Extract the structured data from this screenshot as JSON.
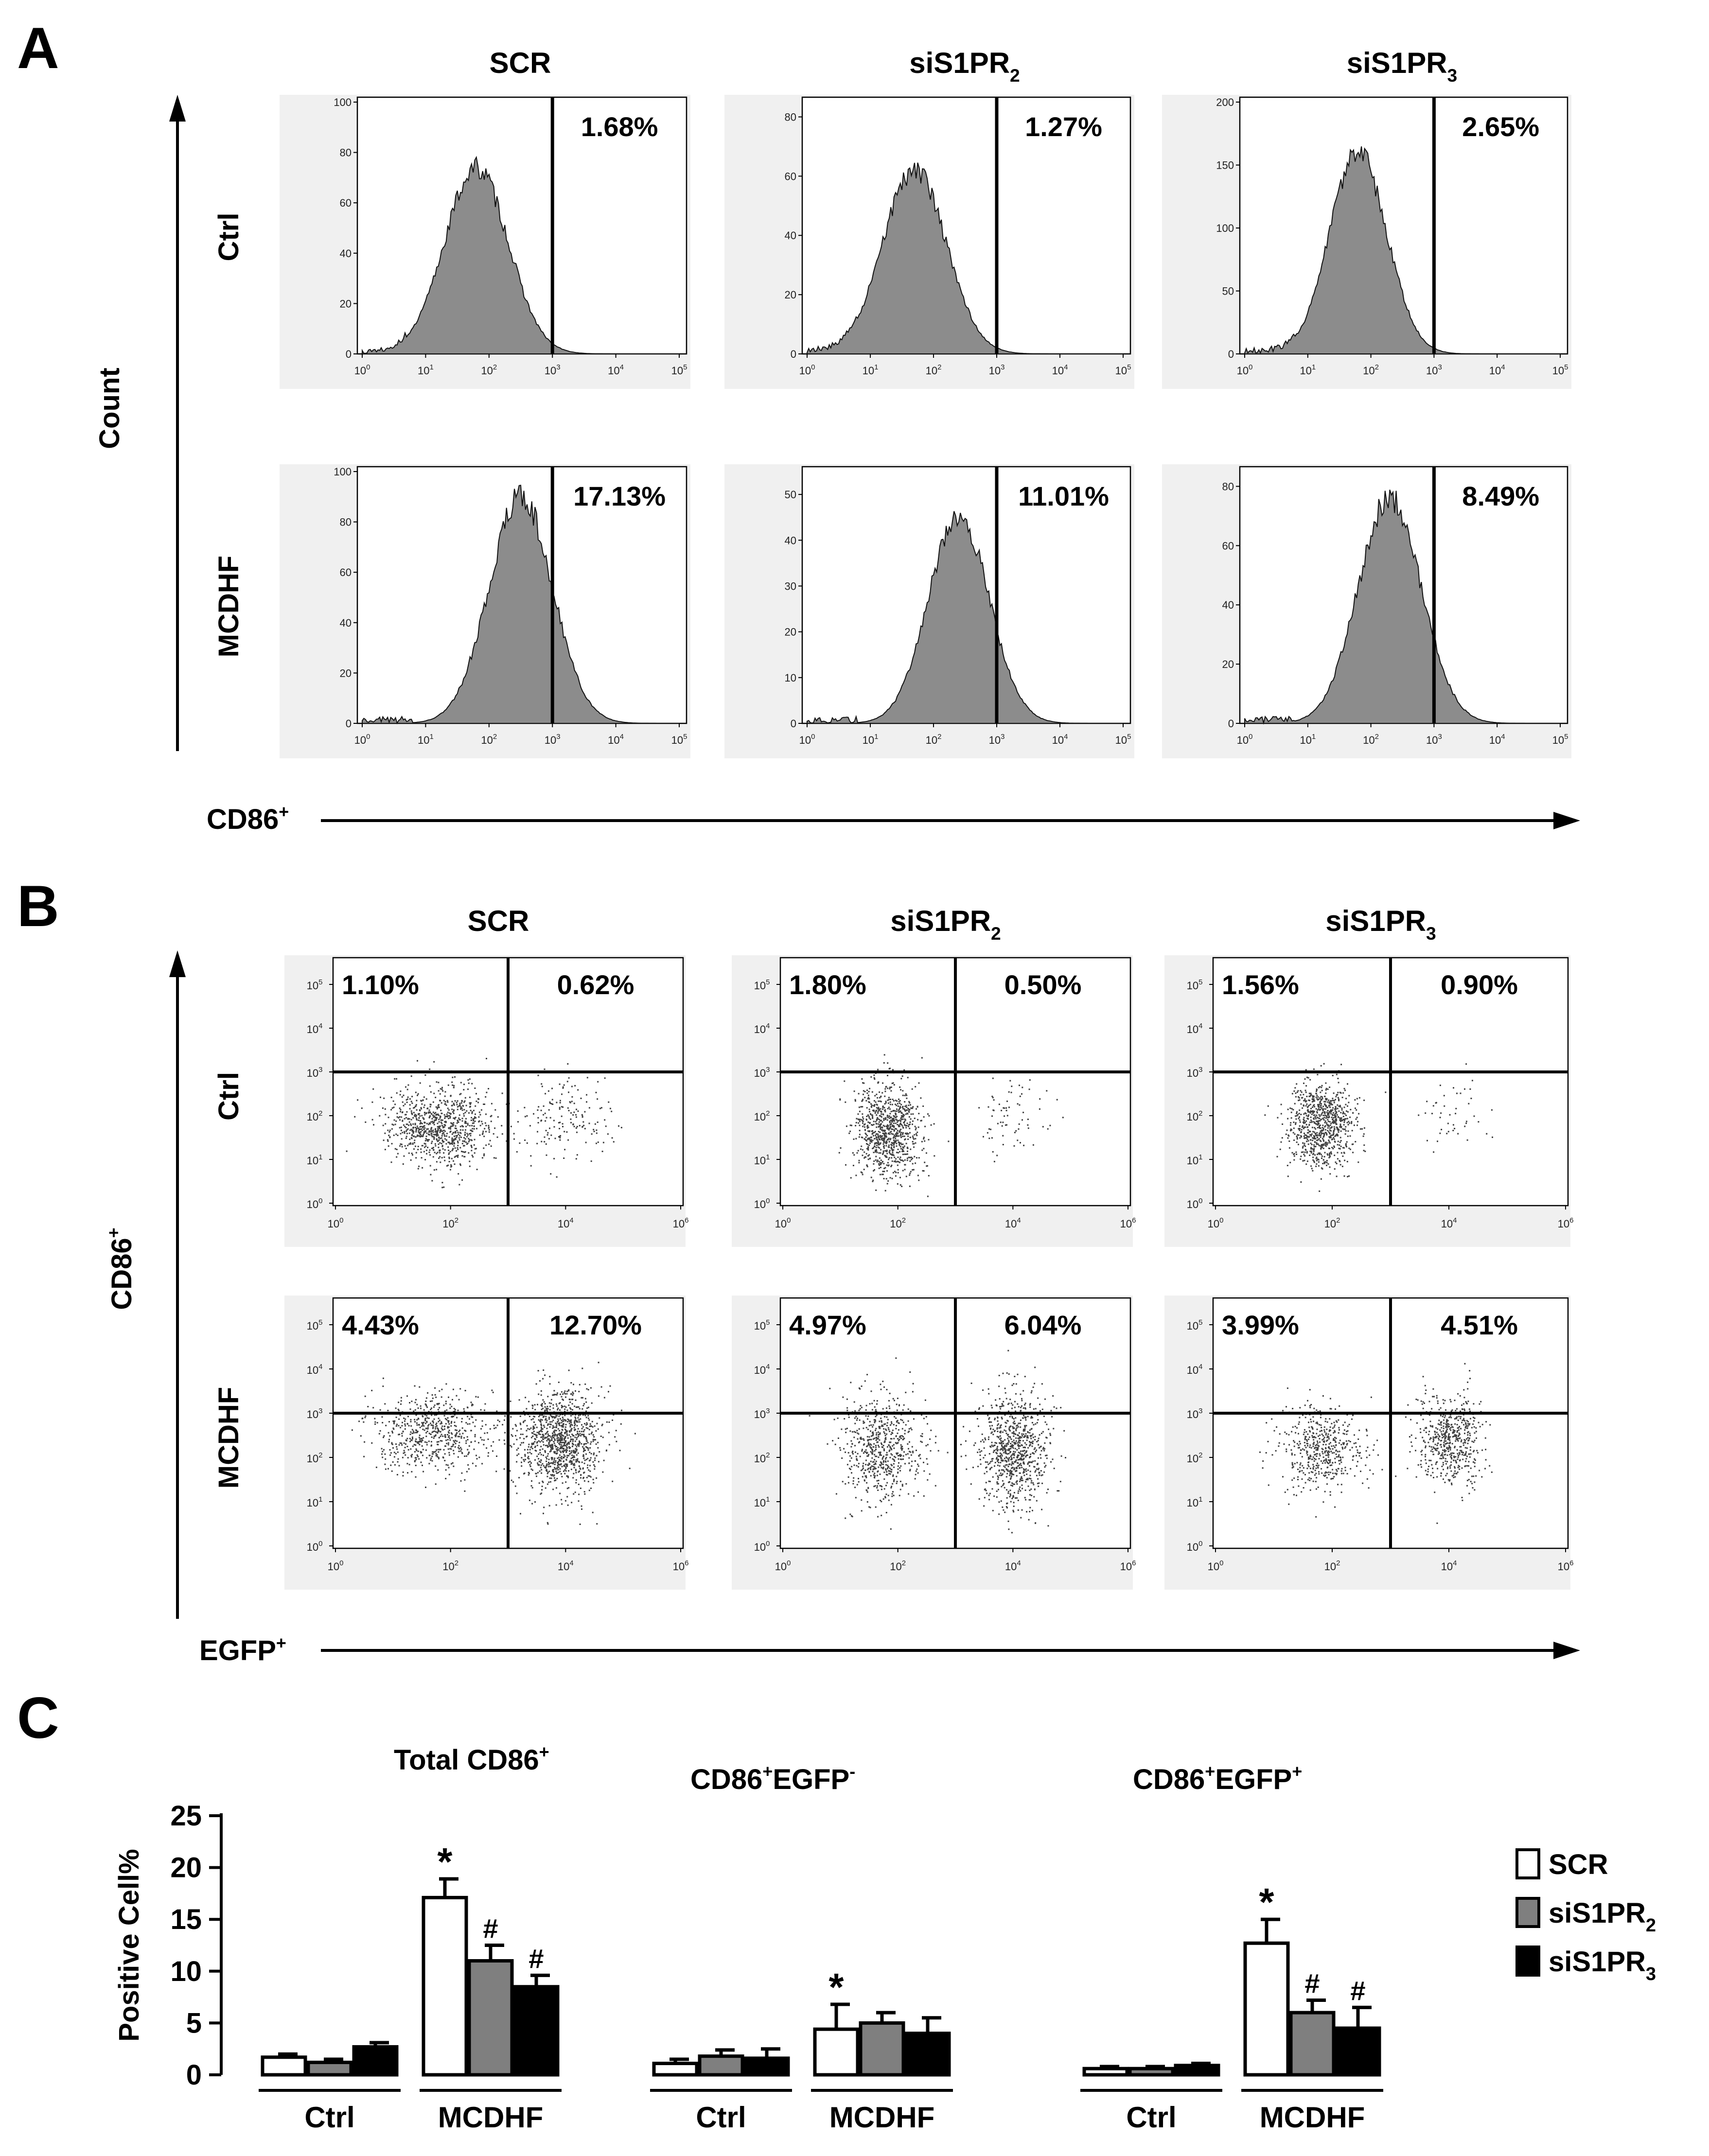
{
  "panels": {
    "a": {
      "letter": "A",
      "col_titles": [
        {
          "main": "SCR",
          "sub": ""
        },
        {
          "main": "siS1PR",
          "sub": "2"
        },
        {
          "main": "siS1PR",
          "sub": "3"
        }
      ],
      "row_labels": [
        "Ctrl",
        "MCDHF"
      ],
      "y_axis_label": "Count",
      "x_axis_label": {
        "main": "CD86",
        "sup": "+"
      },
      "gate_percentages": [
        [
          "1.68%",
          "1.27%",
          "2.65%"
        ],
        [
          "17.13%",
          "11.01%",
          "8.49%"
        ]
      ]
    },
    "b": {
      "letter": "B",
      "col_titles": [
        {
          "main": "SCR",
          "sub": ""
        },
        {
          "main": "siS1PR",
          "sub": "2"
        },
        {
          "main": "siS1PR",
          "sub": "3"
        }
      ],
      "row_labels": [
        "Ctrl",
        "MCDHF"
      ],
      "y_axis_label": {
        "main": "CD86",
        "sup": "+"
      },
      "x_axis_label": {
        "main": "EGFP",
        "sup": "+"
      },
      "quadrant_percentages": [
        [
          [
            "1.10%",
            "0.62%"
          ],
          [
            "1.80%",
            "0.50%"
          ],
          [
            "1.56%",
            "0.90%"
          ]
        ],
        [
          [
            "4.43%",
            "12.70%"
          ],
          [
            "4.97%",
            "6.04%"
          ],
          [
            "3.99%",
            "4.51%"
          ]
        ]
      ]
    },
    "c": {
      "letter": "C"
    }
  },
  "chart_data": [
    {
      "type": "histogram",
      "panel": "A",
      "rows": [
        "Ctrl",
        "MCDHF"
      ],
      "columns": [
        "SCR",
        "siS1PR2",
        "siS1PR3"
      ],
      "x_axis": {
        "scale": "log",
        "range": [
          0,
          5
        ],
        "tick_labels": [
          "10",
          "10",
          "10",
          "10",
          "10",
          "10"
        ],
        "tick_exponents": [
          "0",
          "1",
          "2",
          "3",
          "4",
          "5"
        ]
      },
      "gate_line_log10": 3,
      "plots": [
        {
          "row": "Ctrl",
          "col": "SCR",
          "y_ticks": [
            "0",
            "20",
            "40",
            "60",
            "80",
            "100"
          ],
          "y_max": 100,
          "peak_log10": 1.8,
          "width": 0.5,
          "peak_value": 74
        },
        {
          "row": "Ctrl",
          "col": "siS1PR2",
          "y_ticks": [
            "0",
            "20",
            "40",
            "60",
            "80"
          ],
          "y_max": 85,
          "peak_log10": 1.7,
          "width": 0.5,
          "peak_value": 62
        },
        {
          "row": "Ctrl",
          "col": "siS1PR3",
          "y_ticks": [
            "0",
            "50",
            "100",
            "150",
            "200"
          ],
          "y_max": 200,
          "peak_log10": 1.8,
          "width": 0.45,
          "peak_value": 160
        },
        {
          "row": "MCDHF",
          "col": "SCR",
          "y_ticks": [
            "0",
            "20",
            "40",
            "60",
            "80",
            "100"
          ],
          "y_max": 100,
          "peak_log10": 2.5,
          "width": 0.5,
          "peak_value": 90
        },
        {
          "row": "MCDHF",
          "col": "siS1PR2",
          "y_ticks": [
            "0",
            "10",
            "20",
            "30",
            "40",
            "50"
          ],
          "y_max": 55,
          "peak_log10": 2.4,
          "width": 0.48,
          "peak_value": 45
        },
        {
          "row": "MCDHF",
          "col": "siS1PR3",
          "y_ticks": [
            "0",
            "20",
            "40",
            "60",
            "80"
          ],
          "y_max": 85,
          "peak_log10": 2.3,
          "width": 0.5,
          "peak_value": 76
        }
      ]
    },
    {
      "type": "scatter",
      "panel": "B",
      "rows": [
        "Ctrl",
        "MCDHF"
      ],
      "columns": [
        "SCR",
        "siS1PR2",
        "siS1PR3"
      ],
      "axes": {
        "x": "EGFP+",
        "y": "CD86+",
        "scale": "log",
        "x_range": [
          0,
          6
        ],
        "y_range": [
          0,
          5
        ],
        "x_tick_labels": [
          "10",
          "10",
          "10",
          "10"
        ],
        "x_tick_exponents": [
          "0",
          "2",
          "4",
          "6"
        ],
        "y_tick_labels": [
          "10",
          "10",
          "10",
          "10",
          "10",
          "10"
        ],
        "y_tick_exponents": [
          "0",
          "1",
          "2",
          "3",
          "4",
          "5"
        ]
      },
      "gate_log10": {
        "x": 3,
        "y": 3
      },
      "clusters": [
        {
          "row": "Ctrl",
          "col": "SCR",
          "groups": [
            {
              "cx": 1.8,
              "cy": 1.8,
              "sx": 0.45,
              "sy": 0.45,
              "n": 900
            },
            {
              "cx": 4.0,
              "cy": 2.0,
              "sx": 0.4,
              "sy": 0.45,
              "n": 160
            }
          ]
        },
        {
          "row": "Ctrl",
          "col": "siS1PR2",
          "groups": [
            {
              "cx": 1.8,
              "cy": 1.7,
              "sx": 0.3,
              "sy": 0.55,
              "n": 900
            },
            {
              "cx": 4.0,
              "cy": 2.0,
              "sx": 0.35,
              "sy": 0.45,
              "n": 70
            }
          ]
        },
        {
          "row": "Ctrl",
          "col": "siS1PR3",
          "groups": [
            {
              "cx": 1.8,
              "cy": 1.8,
              "sx": 0.3,
              "sy": 0.5,
              "n": 850
            },
            {
              "cx": 4.0,
              "cy": 2.0,
              "sx": 0.35,
              "sy": 0.45,
              "n": 45
            }
          ]
        },
        {
          "row": "MCDHF",
          "col": "SCR",
          "groups": [
            {
              "cx": 1.7,
              "cy": 2.6,
              "sx": 0.55,
              "sy": 0.45,
              "n": 650
            },
            {
              "cx": 3.9,
              "cy": 2.4,
              "sx": 0.35,
              "sy": 0.6,
              "n": 1100
            }
          ]
        },
        {
          "row": "MCDHF",
          "col": "siS1PR2",
          "groups": [
            {
              "cx": 1.7,
              "cy": 2.2,
              "sx": 0.35,
              "sy": 0.6,
              "n": 650
            },
            {
              "cx": 4.0,
              "cy": 2.2,
              "sx": 0.3,
              "sy": 0.65,
              "n": 850
            }
          ]
        },
        {
          "row": "MCDHF",
          "col": "siS1PR3",
          "groups": [
            {
              "cx": 1.8,
              "cy": 2.2,
              "sx": 0.35,
              "sy": 0.5,
              "n": 500
            },
            {
              "cx": 4.0,
              "cy": 2.4,
              "sx": 0.3,
              "sy": 0.5,
              "n": 550
            }
          ]
        }
      ]
    },
    {
      "type": "bar",
      "panel": "C",
      "ylabel": "Positive Cell%",
      "ylim": [
        0,
        25
      ],
      "y_ticks": [
        "0",
        "5",
        "10",
        "15",
        "20",
        "25"
      ],
      "legend": [
        "SCR",
        "siS1PR",
        "siS1PR"
      ],
      "legend_subs": [
        "",
        "2",
        "3"
      ],
      "legend_position": "right",
      "series_colors": [
        "#ffffff",
        "#7f7f7f",
        "#000000"
      ],
      "group_labels": [
        "Ctrl",
        "MCDHF"
      ],
      "subplots": [
        {
          "title": "Total CD86",
          "title_sup": "+",
          "title_sup2": "",
          "title_part2": "",
          "values": [
            [
              1.7,
              1.2,
              2.7
            ],
            [
              17.1,
              11.0,
              8.5
            ]
          ],
          "errors": [
            [
              0.3,
              0.3,
              0.4
            ],
            [
              1.8,
              1.5,
              1.1
            ]
          ],
          "annotations": [
            [
              "",
              "",
              ""
            ],
            [
              "*",
              "#",
              "#"
            ]
          ]
        },
        {
          "title": "CD86",
          "title_sup": "+",
          "title_part2": "EGFP",
          "title_sup2": "-",
          "values": [
            [
              1.1,
              1.8,
              1.6
            ],
            [
              4.4,
              5.0,
              4.0
            ]
          ],
          "errors": [
            [
              0.4,
              0.6,
              0.9
            ],
            [
              2.4,
              1.0,
              1.5
            ]
          ],
          "annotations": [
            [
              "",
              "",
              ""
            ],
            [
              "*",
              "",
              ""
            ]
          ]
        },
        {
          "title": "CD86",
          "title_sup": "+",
          "title_part2": "EGFP",
          "title_sup2": "+",
          "values": [
            [
              0.6,
              0.6,
              0.9
            ],
            [
              12.7,
              6.0,
              4.5
            ]
          ],
          "errors": [
            [
              0.2,
              0.2,
              0.2
            ],
            [
              2.3,
              1.2,
              2.0
            ]
          ],
          "annotations": [
            [
              "",
              "",
              ""
            ],
            [
              "*",
              "#",
              "#"
            ]
          ]
        }
      ]
    }
  ]
}
